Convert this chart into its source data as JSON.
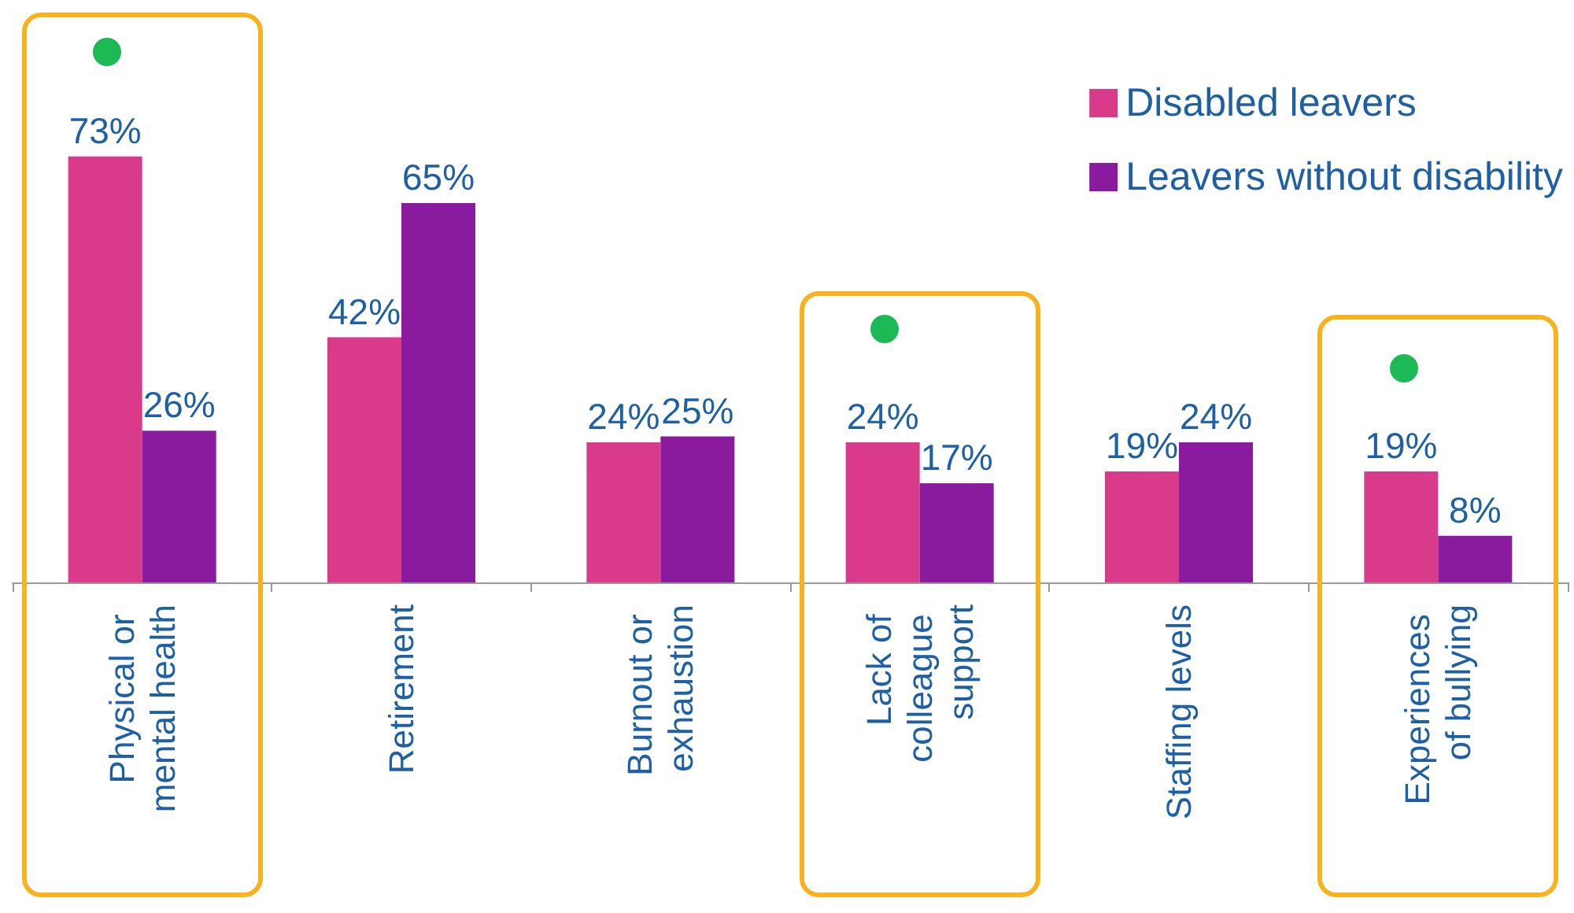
{
  "chart_data": {
    "type": "bar",
    "categories": [
      "Physical or mental health",
      "Retirement",
      "Burnout or exhaustion",
      "Lack of colleague support",
      "Staffing levels",
      "Experiences of bullying"
    ],
    "series": [
      {
        "name": "Disabled leavers",
        "color": "#d93a8a",
        "values": [
          73,
          42,
          24,
          24,
          19,
          19
        ],
        "value_labels": [
          "73%",
          "42%",
          "24%",
          "24%",
          "19%",
          "19%"
        ]
      },
      {
        "name": "Leavers without disability",
        "color": "#8a1a9e",
        "values": [
          26,
          65,
          25,
          17,
          24,
          8
        ],
        "value_labels": [
          "26%",
          "65%",
          "25%",
          "17%",
          "24%",
          "8%"
        ]
      }
    ],
    "legend": "top right",
    "grid": false
  }
}
